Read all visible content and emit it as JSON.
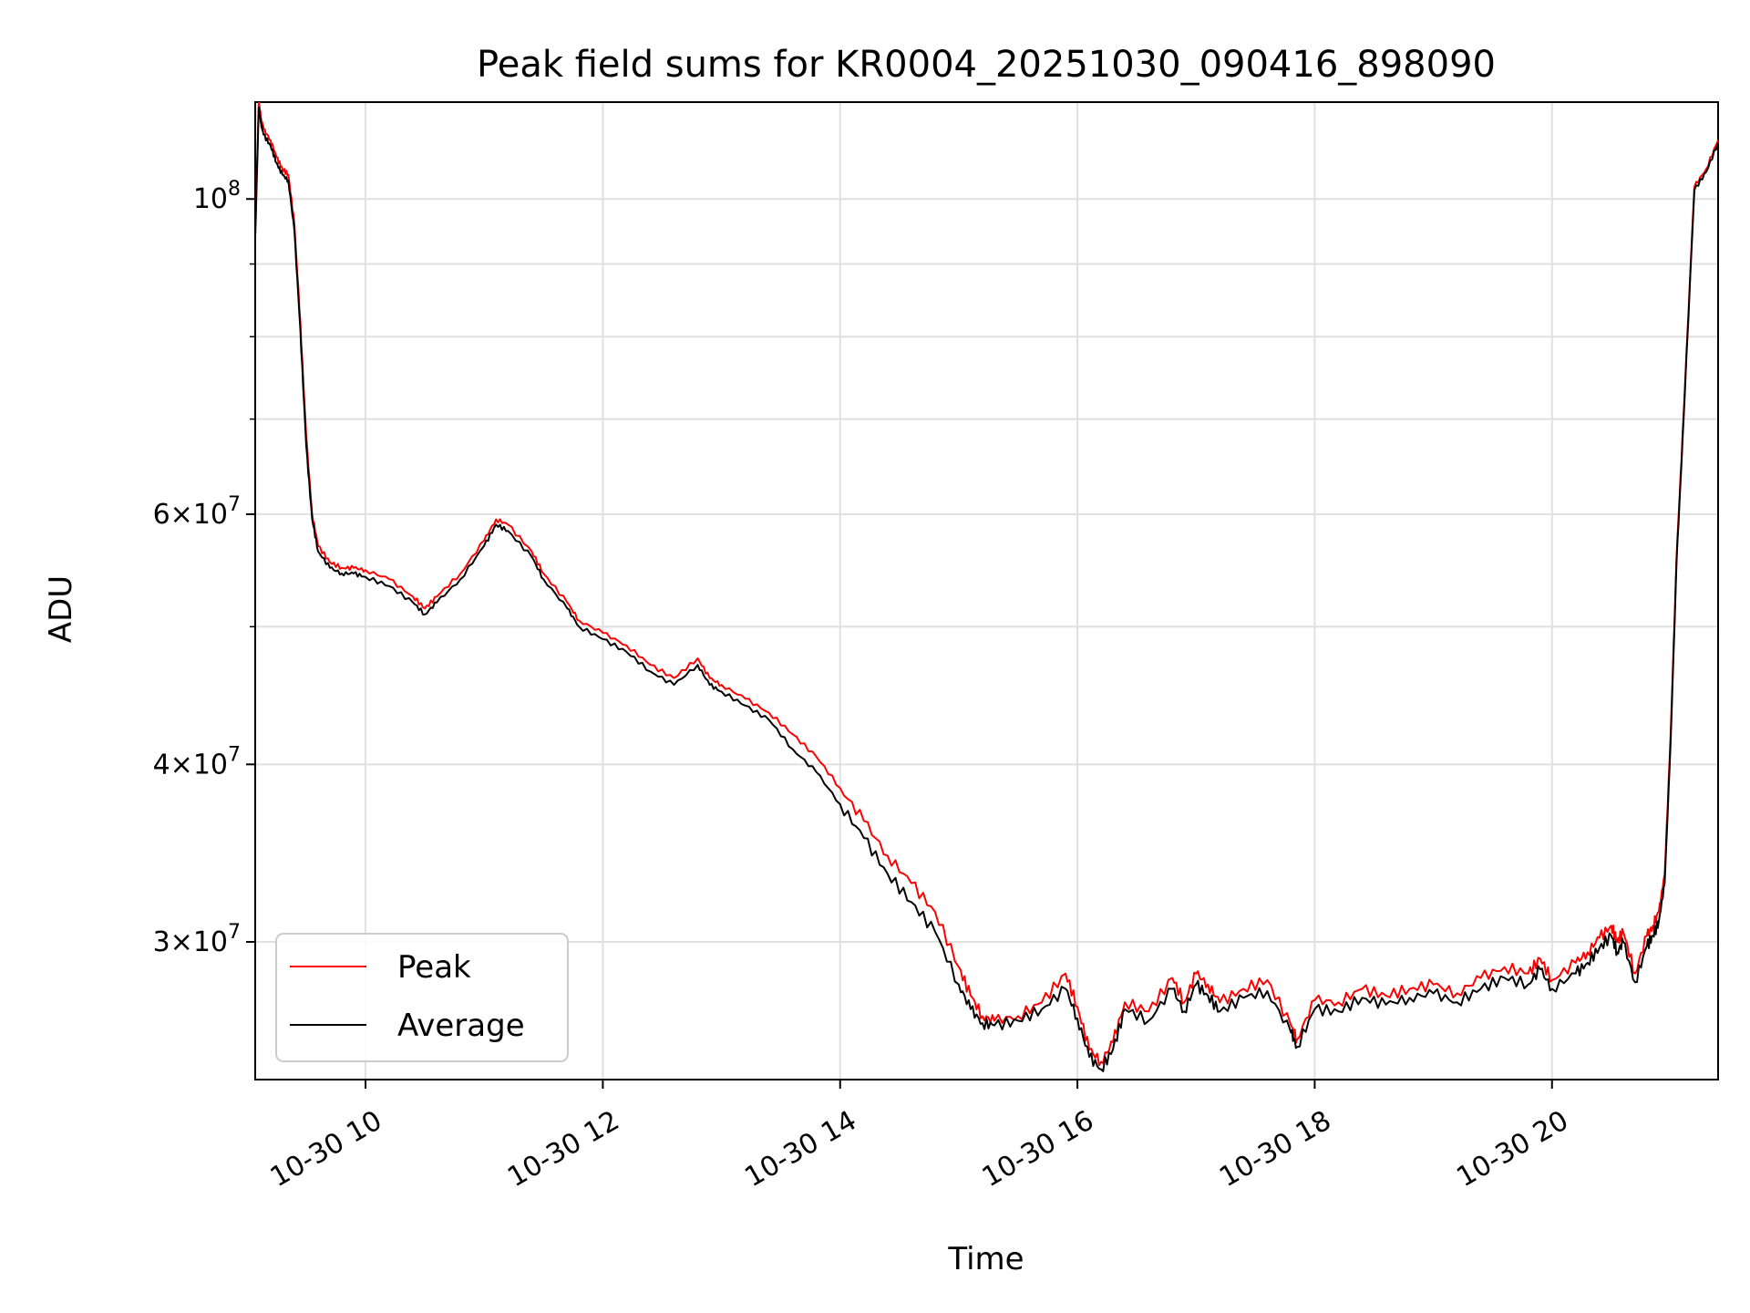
{
  "chart_data": {
    "type": "line",
    "title": "Peak field sums for KR0004_20251030_090416_898090",
    "xlabel": "Time",
    "ylabel": "ADU",
    "yscale": "log",
    "grid": true,
    "legend_position": "lower-left",
    "xlim": [
      9.07,
      21.4
    ],
    "ylim": [
      24000000,
      117000000
    ],
    "x_ticks": [
      {
        "value": 10,
        "label": "10-30 10"
      },
      {
        "value": 12,
        "label": "10-30 12"
      },
      {
        "value": 14,
        "label": "10-30 14"
      },
      {
        "value": 16,
        "label": "10-30 16"
      },
      {
        "value": 18,
        "label": "10-30 18"
      },
      {
        "value": 20,
        "label": "10-30 20"
      }
    ],
    "y_ticks": [
      {
        "value": 30000000,
        "mantissa": "3",
        "base": "10",
        "exp": "7"
      },
      {
        "value": 40000000,
        "mantissa": "4",
        "base": "10",
        "exp": "7"
      },
      {
        "value": 60000000,
        "mantissa": "6",
        "base": "10",
        "exp": "7"
      },
      {
        "value": 100000000,
        "mantissa": "",
        "base": "10",
        "exp": "8"
      }
    ],
    "y_minor_ticks": [
      50000000,
      70000000,
      80000000,
      90000000
    ],
    "series": [
      {
        "name": "Peak",
        "color": "#ff0000",
        "x": [
          9.07,
          9.1,
          9.12,
          9.14,
          9.2,
          9.25,
          9.3,
          9.35,
          9.4,
          9.45,
          9.5,
          9.55,
          9.6,
          9.7,
          9.8,
          9.9,
          10.0,
          10.2,
          10.4,
          10.5,
          10.6,
          10.8,
          11.0,
          11.1,
          11.2,
          11.4,
          11.5,
          11.7,
          11.8,
          12.0,
          12.2,
          12.4,
          12.6,
          12.8,
          12.9,
          13.0,
          13.2,
          13.4,
          13.6,
          13.8,
          14.0,
          14.2,
          14.4,
          14.6,
          14.8,
          15.0,
          15.1,
          15.2,
          15.3,
          15.5,
          15.7,
          15.9,
          16.0,
          16.1,
          16.2,
          16.3,
          16.4,
          16.6,
          16.8,
          16.9,
          17.0,
          17.1,
          17.2,
          17.4,
          17.6,
          17.8,
          17.85,
          18.0,
          18.2,
          18.4,
          18.6,
          18.8,
          19.0,
          19.2,
          19.4,
          19.6,
          19.8,
          19.9,
          20.0,
          20.2,
          20.3,
          20.4,
          20.5,
          20.55,
          20.6,
          20.7,
          20.8,
          20.85,
          20.9,
          20.95,
          21.0,
          21.05,
          21.1,
          21.2,
          21.3,
          21.4
        ],
        "values": [
          95000000,
          117000000,
          114000000,
          112000000,
          110000000,
          107000000,
          105000000,
          104000000,
          96000000,
          82000000,
          68000000,
          60000000,
          57000000,
          55500000,
          55000000,
          55000000,
          54800000,
          54000000,
          52500000,
          51500000,
          52500000,
          54500000,
          57500000,
          59500000,
          59000000,
          56500000,
          54500000,
          52000000,
          50500000,
          49500000,
          48500000,
          47000000,
          46000000,
          47500000,
          46000000,
          45500000,
          44500000,
          43500000,
          42000000,
          40500000,
          38500000,
          36500000,
          34500000,
          33000000,
          31500000,
          28800000,
          27500000,
          26600000,
          26400000,
          26600000,
          27200000,
          28500000,
          27000000,
          25200000,
          24700000,
          25500000,
          27200000,
          26800000,
          28300000,
          27200000,
          28500000,
          28000000,
          27200000,
          27800000,
          28200000,
          26200000,
          25600000,
          27300000,
          27200000,
          27800000,
          27500000,
          27800000,
          28000000,
          27600000,
          28300000,
          28800000,
          28500000,
          29200000,
          28200000,
          29000000,
          29500000,
          30200000,
          30800000,
          30000000,
          30500000,
          28500000,
          30300000,
          30800000,
          31500000,
          33500000,
          42000000,
          56000000,
          68000000,
          102000000,
          105000000,
          110000000
        ]
      },
      {
        "name": "Average",
        "color": "#000000",
        "x": [
          9.07,
          9.1,
          9.12,
          9.14,
          9.2,
          9.25,
          9.3,
          9.35,
          9.4,
          9.45,
          9.5,
          9.55,
          9.6,
          9.7,
          9.8,
          9.9,
          10.0,
          10.2,
          10.4,
          10.5,
          10.6,
          10.8,
          11.0,
          11.1,
          11.2,
          11.4,
          11.5,
          11.7,
          11.8,
          12.0,
          12.2,
          12.4,
          12.6,
          12.8,
          12.9,
          13.0,
          13.2,
          13.4,
          13.6,
          13.8,
          14.0,
          14.2,
          14.4,
          14.6,
          14.8,
          15.0,
          15.1,
          15.2,
          15.3,
          15.5,
          15.7,
          15.9,
          16.0,
          16.1,
          16.2,
          16.3,
          16.4,
          16.6,
          16.8,
          16.9,
          17.0,
          17.1,
          17.2,
          17.4,
          17.6,
          17.8,
          17.85,
          18.0,
          18.2,
          18.4,
          18.6,
          18.8,
          19.0,
          19.2,
          19.4,
          19.6,
          19.8,
          19.9,
          20.0,
          20.2,
          20.3,
          20.4,
          20.5,
          20.55,
          20.6,
          20.7,
          20.8,
          20.85,
          20.9,
          20.95,
          21.0,
          21.05,
          21.1,
          21.2,
          21.3,
          21.4
        ],
        "values": [
          94000000,
          116000000,
          113000000,
          111000000,
          109000000,
          106000000,
          104000000,
          103000000,
          95000000,
          81000000,
          67000000,
          59500000,
          56500000,
          55000000,
          54500000,
          54500000,
          54200000,
          53400000,
          52000000,
          51000000,
          52000000,
          54000000,
          57000000,
          59000000,
          58400000,
          56000000,
          54000000,
          51500000,
          50000000,
          49000000,
          48000000,
          46500000,
          45500000,
          47000000,
          45500000,
          45000000,
          44000000,
          43000000,
          41000000,
          39500000,
          37500000,
          35500000,
          33500000,
          32000000,
          30500000,
          28000000,
          26900000,
          26300000,
          26200000,
          26400000,
          26900000,
          27800000,
          26500000,
          24900000,
          24400000,
          25200000,
          26900000,
          26400000,
          27800000,
          26800000,
          28000000,
          27500000,
          26800000,
          27400000,
          27700000,
          25900000,
          25300000,
          26900000,
          26800000,
          27400000,
          27100000,
          27400000,
          27600000,
          27200000,
          27800000,
          28300000,
          28000000,
          28700000,
          27800000,
          28500000,
          29000000,
          29700000,
          30300000,
          29500000,
          30000000,
          28100000,
          29800000,
          30300000,
          31000000,
          33000000,
          41500000,
          55500000,
          67500000,
          101500000,
          104500000,
          109500000
        ]
      }
    ]
  }
}
